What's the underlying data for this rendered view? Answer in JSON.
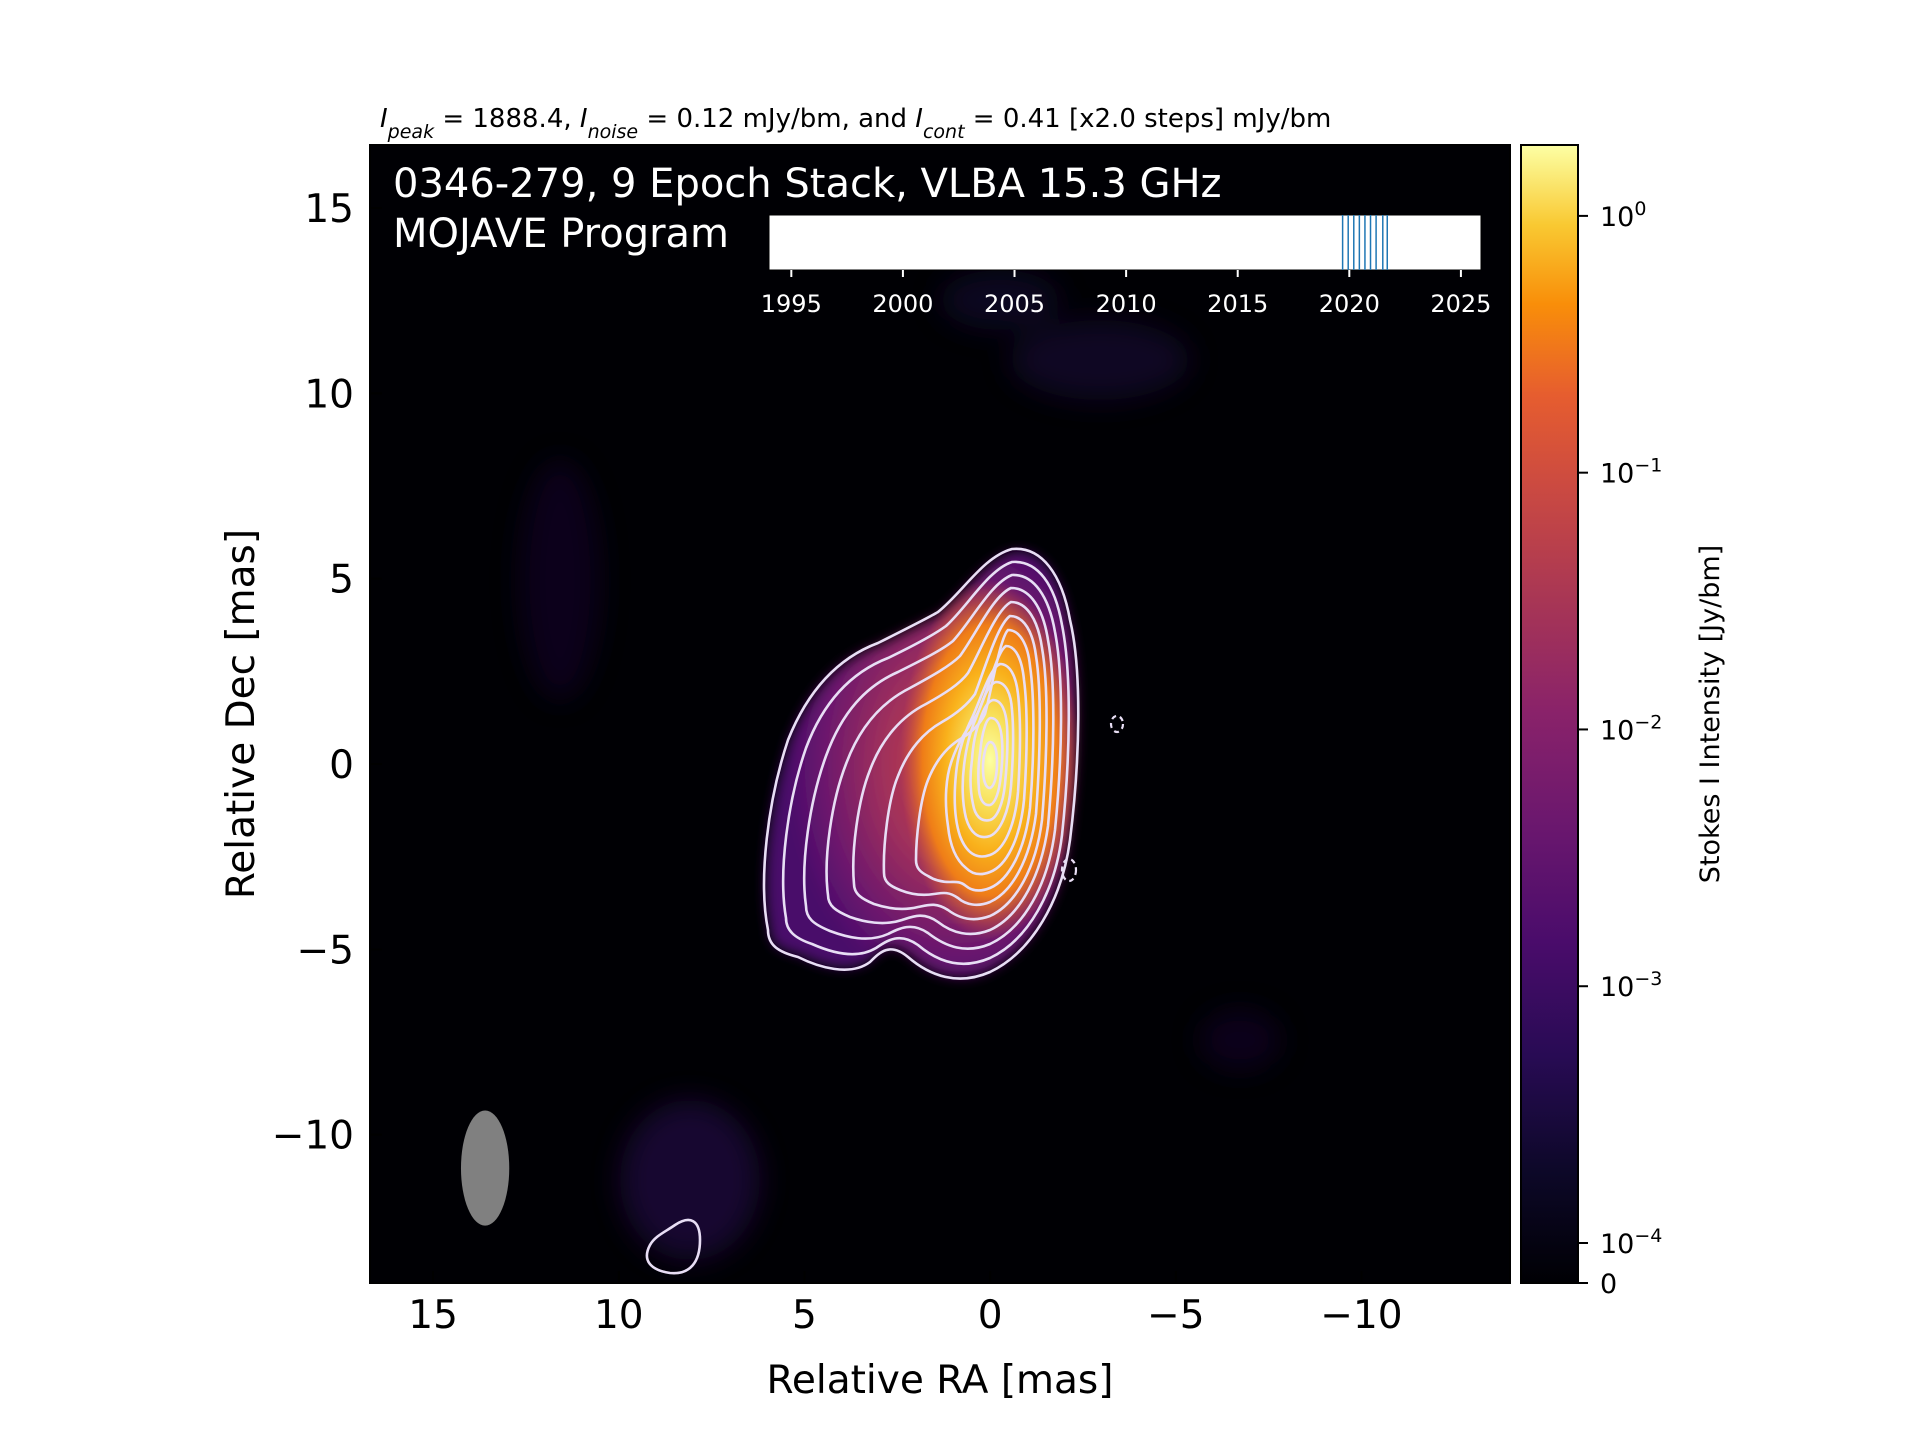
{
  "chart_data": {
    "type": "heatmap",
    "header_parts": [
      "I",
      "peak",
      " = 1888.4, ",
      "I",
      "noise",
      " = 0.12 mJy/bm, and ",
      "I",
      "cont",
      " = 0.41 [x2.0 steps] mJy/bm"
    ],
    "title_line1": "0346-279, 9 Epoch Stack, VLBA 15.3 GHz",
    "title_line2": "MOJAVE Program",
    "xlabel": "Relative RA [mas]",
    "ylabel": "Relative Dec [mas]",
    "xlim": [
      16.7,
      -14.0
    ],
    "ylim": [
      -14.0,
      16.7
    ],
    "xticks": [
      15,
      10,
      5,
      0,
      -5,
      -10
    ],
    "yticks": [
      15,
      10,
      5,
      0,
      -5,
      -10
    ],
    "colorbar": {
      "label": "Stokes I Intensity [Jy/bm]",
      "scale": "log",
      "colormap": "inferno",
      "range": [
        0,
        1.8884
      ],
      "ticks": [
        {
          "value": 1,
          "label": "10",
          "exp": "0"
        },
        {
          "value": 0.1,
          "label": "10",
          "exp": "−1"
        },
        {
          "value": 0.01,
          "label": "10",
          "exp": "−2"
        },
        {
          "value": 0.001,
          "label": "10",
          "exp": "−3"
        },
        {
          "value": 0.0001,
          "label": "10",
          "exp": "−4"
        },
        {
          "value": 0,
          "label": "0",
          "exp": ""
        }
      ]
    },
    "beam": {
      "ra_center": 13.6,
      "dec_center": -10.9,
      "major_mas": 3.1,
      "minor_mas": 1.3,
      "pa_deg": 0,
      "color": "#808080"
    },
    "source": {
      "peak_jy": 1.8884,
      "peak_ra": 0.0,
      "peak_dec": 0.0
    },
    "contour_levels_jy": [
      0.00041,
      0.00082,
      0.00164,
      0.00328,
      0.00656,
      0.01312,
      0.02624,
      0.05248,
      0.10496,
      0.20992,
      0.41984,
      0.83968,
      1.67936
    ],
    "epoch_timeline": {
      "xlim": [
        1994,
        2025.9
      ],
      "ticks": [
        1995,
        2000,
        2005,
        2010,
        2015,
        2020,
        2025
      ],
      "epochs": [
        2019.7,
        2019.95,
        2020.2,
        2020.45,
        2020.7,
        2020.95,
        2021.2,
        2021.5,
        2021.7
      ],
      "color": "#1f77b4"
    }
  }
}
